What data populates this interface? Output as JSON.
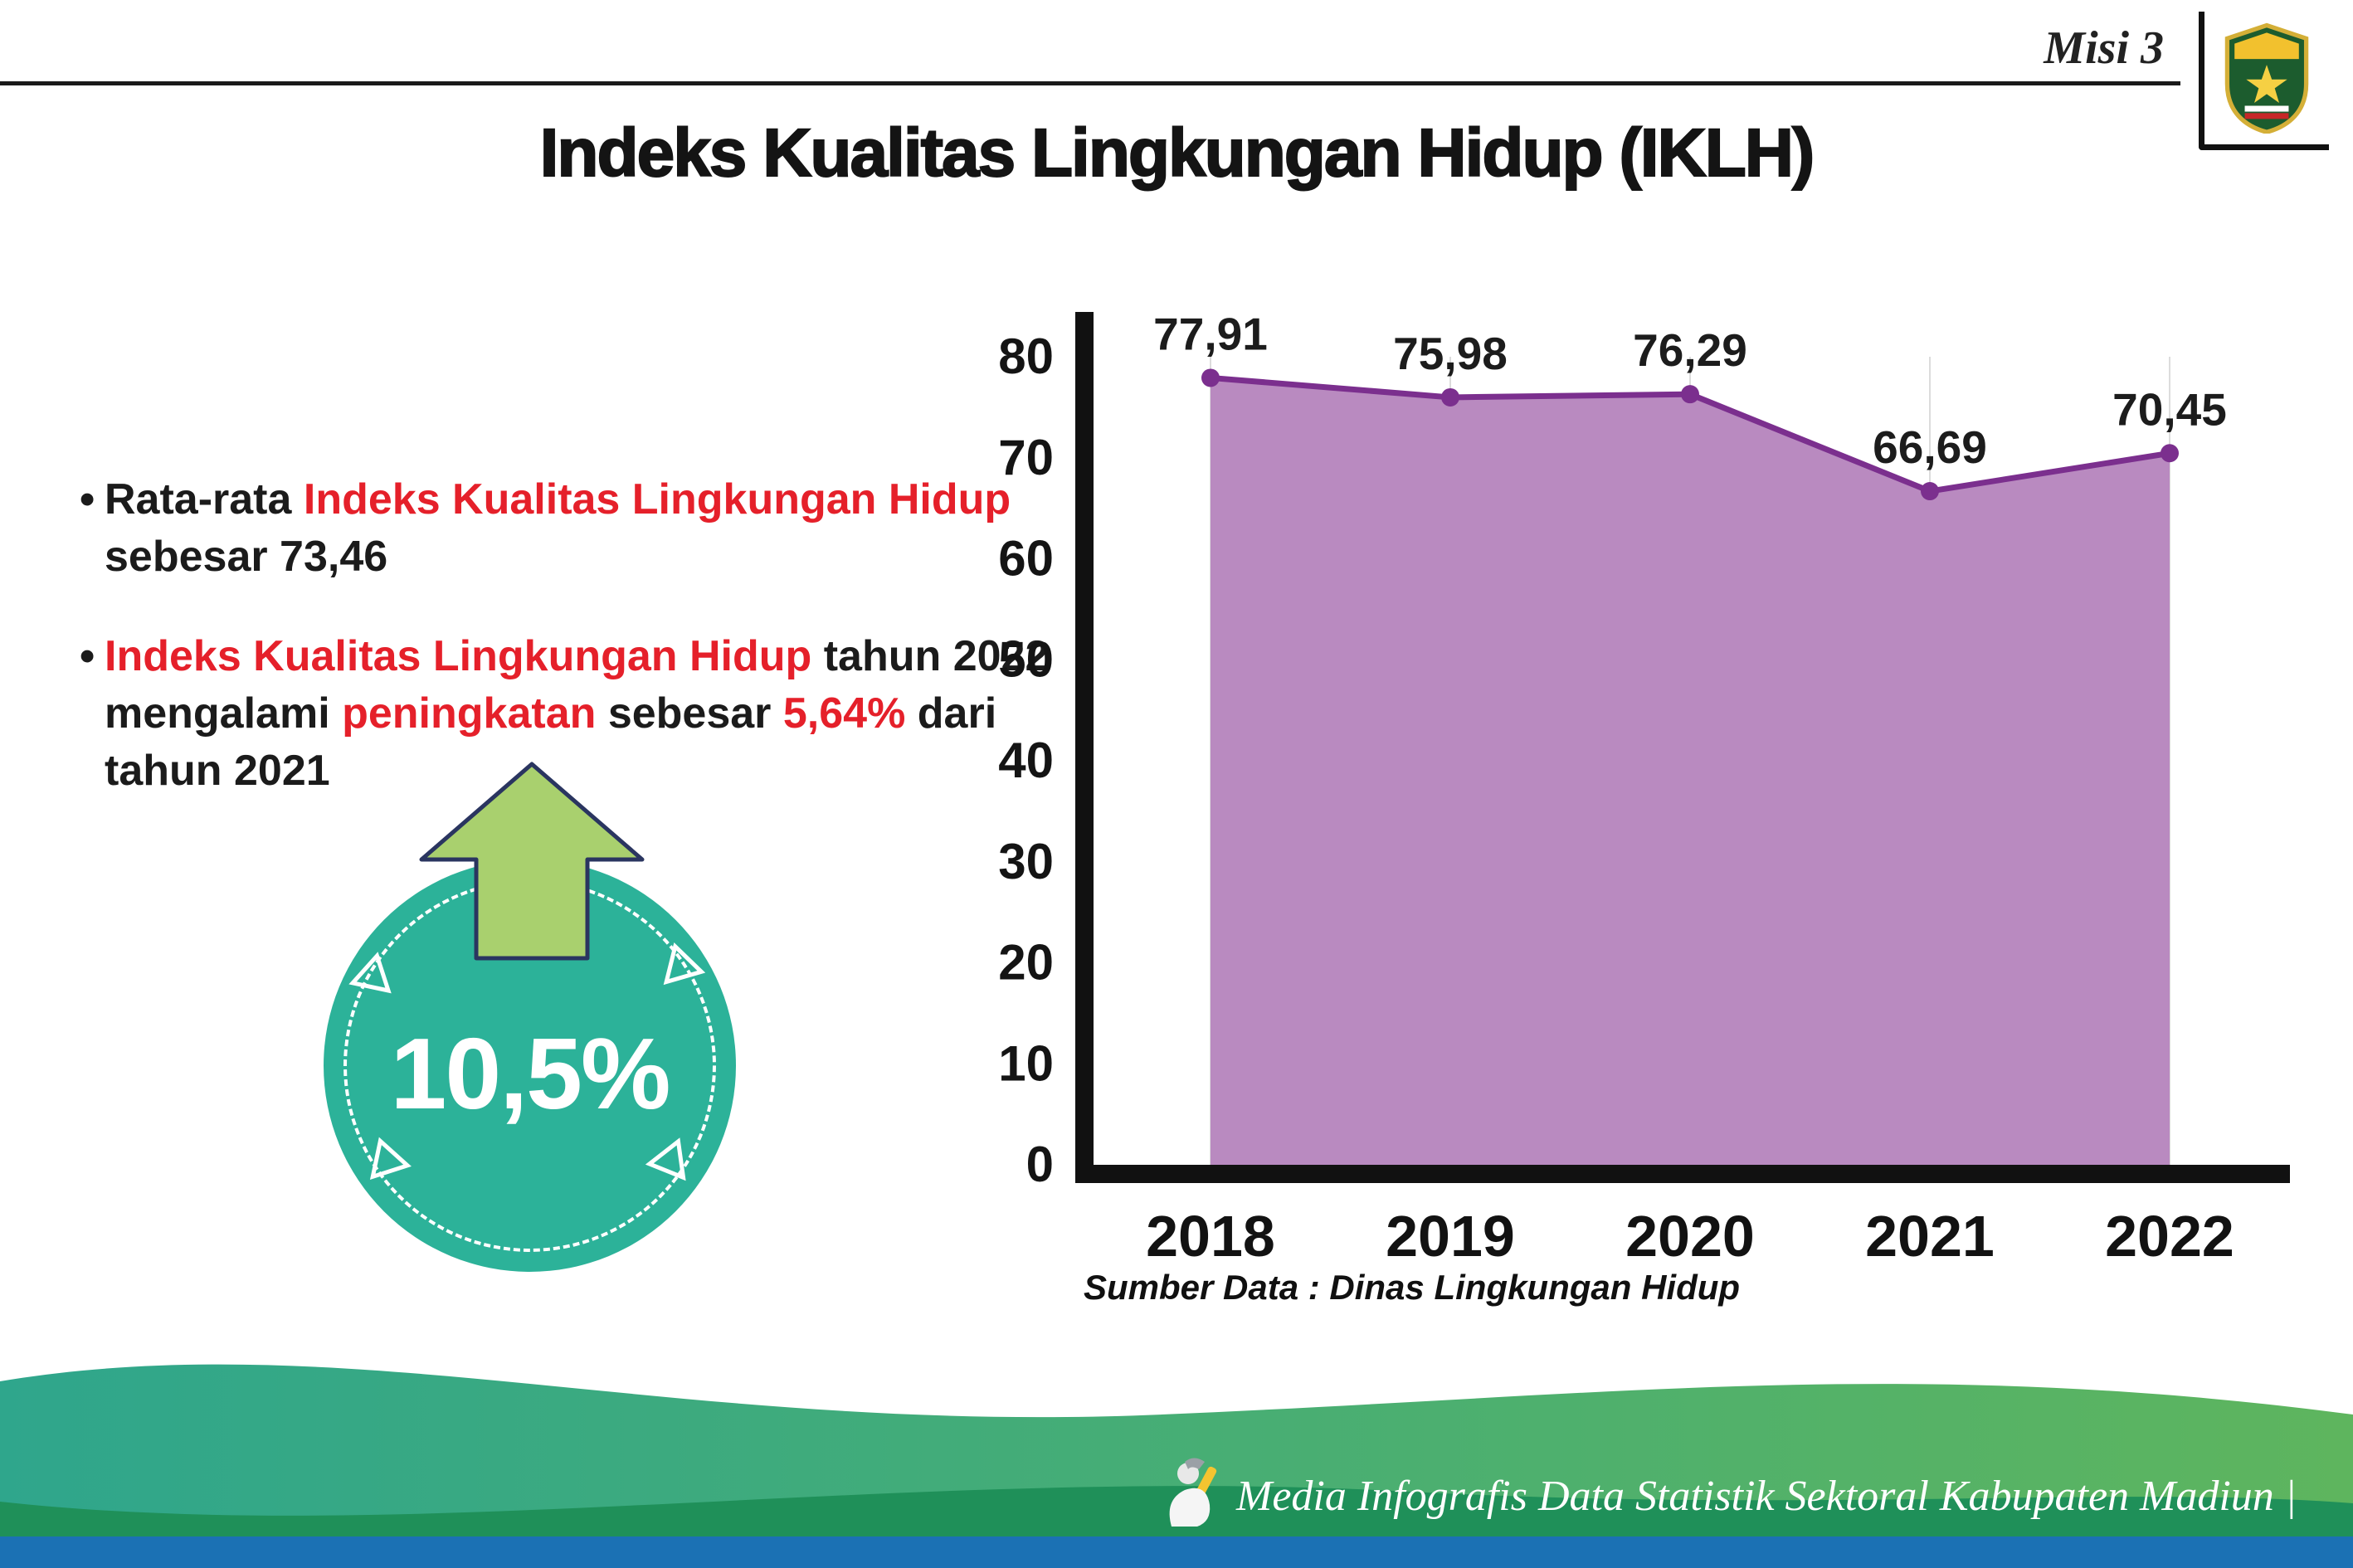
{
  "header": {
    "misi_label": "Misi 3"
  },
  "title": "Indeks Kualitas Lingkungan Hidup (IKLH)",
  "bullet_marker": "•",
  "bullets": {
    "b1": {
      "s1": "Rata-rata ",
      "s2": "Indeks Kualitas Lingkungan Hidup",
      "s3": " sebesar 73,46"
    },
    "b2": {
      "s1": "Indeks Kualitas Lingkungan Hidup",
      "s2": " tahun 2022 mengalami ",
      "s3": "peningkatan",
      "s4": " sebesar ",
      "s5": "5,64%",
      "s6": " dari tahun 2021"
    }
  },
  "badge": {
    "value": "10,5%"
  },
  "chart_data": {
    "type": "area",
    "categories": [
      "2018",
      "2019",
      "2020",
      "2021",
      "2022"
    ],
    "values": [
      77.91,
      75.98,
      76.29,
      66.69,
      70.45
    ],
    "value_labels": [
      "77,91",
      "75,98",
      "76,29",
      "66,69",
      "70,45"
    ],
    "ylim": [
      0,
      80
    ],
    "yticks": [
      0,
      10,
      20,
      30,
      40,
      50,
      60,
      70,
      80
    ],
    "grid": "vertical-light",
    "legend": "none",
    "line_color": "#7b2f8e",
    "fill_color": "#b98ac0",
    "point_color": "#7b2f8e",
    "source": "Sumber Data : Dinas Lingkungan Hidup"
  },
  "footer": {
    "credit": "Media Infografis Data Statistik Sektoral Kabupaten Madiun |"
  },
  "colors": {
    "accent_red": "#e5202a",
    "badge_teal": "#2cb299",
    "arrow_green": "#a9d06e",
    "wave_teal": "#2fa68c",
    "wave_green": "#5eb55e",
    "wave_dark": "#1f9059",
    "bottom_blue": "#1b71b4"
  }
}
